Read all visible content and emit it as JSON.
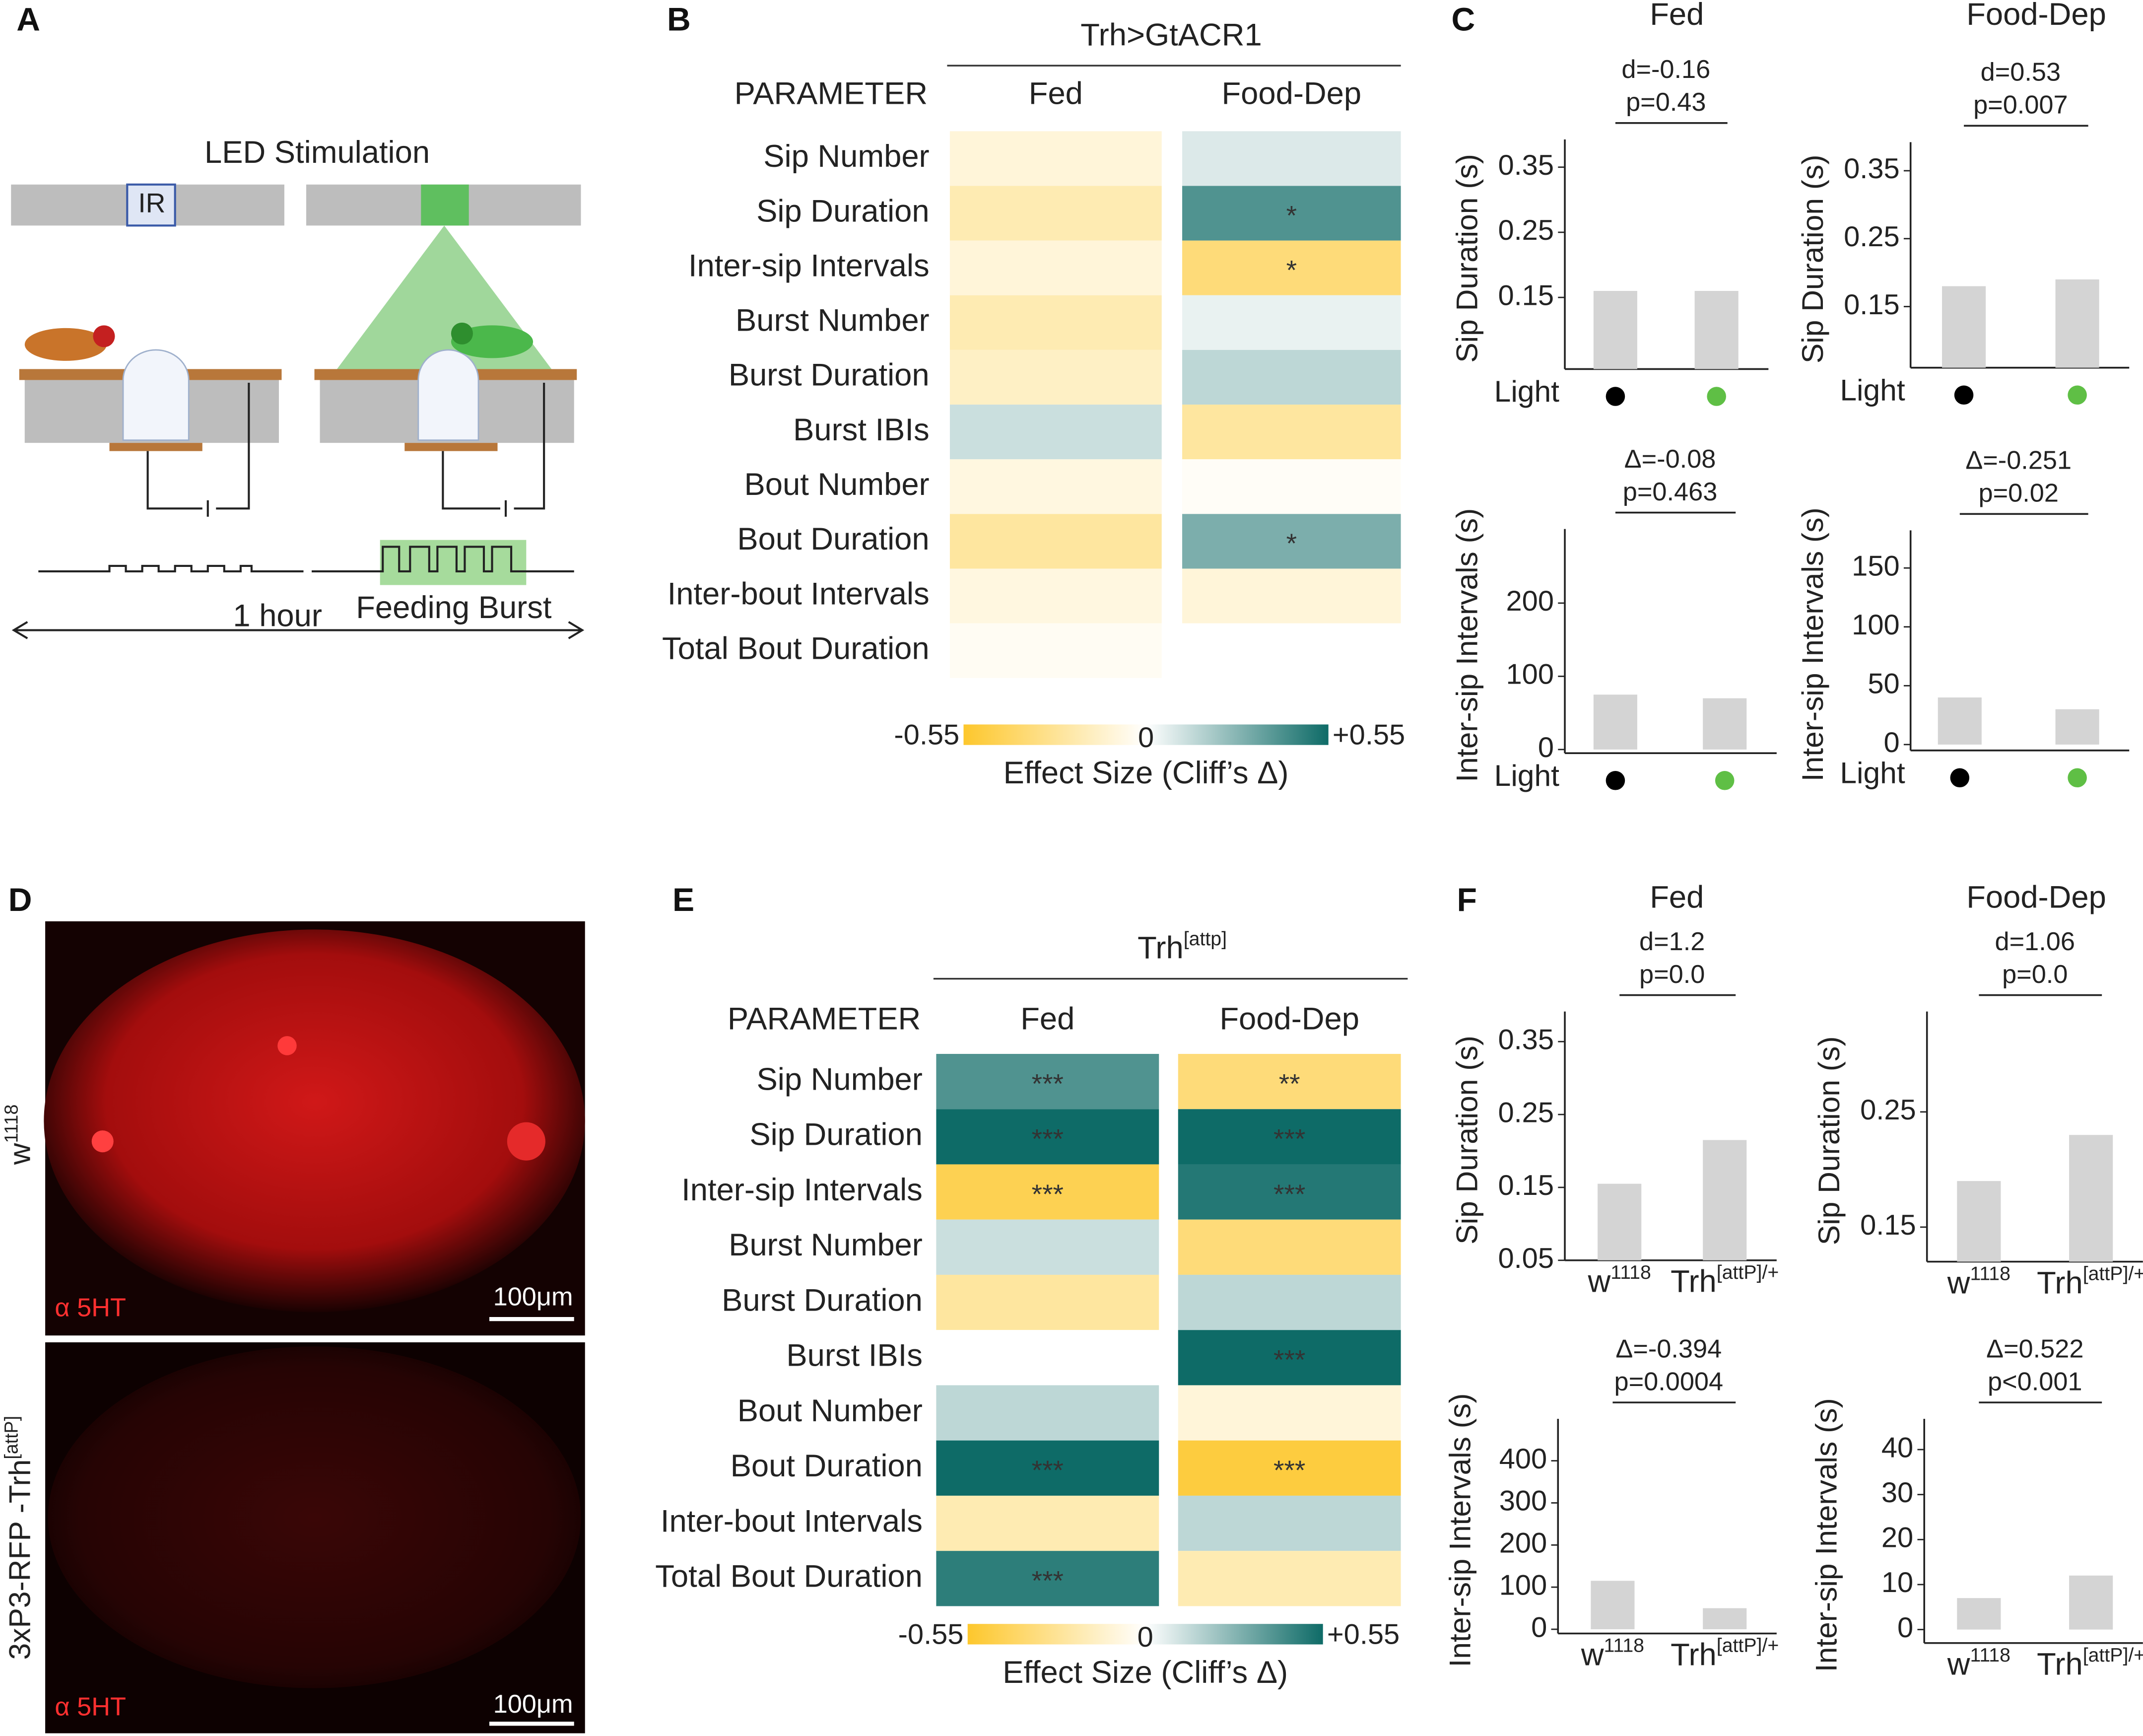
{
  "panels": {
    "A": {
      "label": "A",
      "title": "LED Stimulation",
      "ir": "IR",
      "duration": "1 hour",
      "burst": "Feeding Burst"
    },
    "B": {
      "label": "B",
      "genotype": {
        "base": "Trh>GtACR1"
      },
      "param_header": "PARAMETER",
      "columns": [
        "Fed",
        "Food-Dep"
      ],
      "rows": [
        "Sip Number",
        "Sip Duration",
        "Inter-sip Intervals",
        "Burst Number",
        "Burst Duration",
        "Burst IBIs",
        "Bout Number",
        "Bout Duration",
        "Inter-bout Intervals",
        "Total Bout Duration"
      ],
      "cells": [
        [
          -0.1,
          0.08
        ],
        [
          -0.2,
          0.4
        ],
        [
          -0.1,
          -0.35
        ],
        [
          -0.2,
          0.05
        ],
        [
          -0.15,
          0.15
        ],
        [
          0.12,
          -0.25
        ],
        [
          -0.08,
          -0.02
        ],
        [
          -0.25,
          0.3
        ],
        [
          -0.08,
          -0.1
        ],
        [
          -0.03,
          0
        ]
      ],
      "stars": [
        [
          null,
          null
        ],
        [
          null,
          "*"
        ],
        [
          null,
          "*"
        ],
        [
          null,
          null
        ],
        [
          null,
          null
        ],
        [
          null,
          null
        ],
        [
          null,
          null
        ],
        [
          null,
          "*"
        ],
        [
          null,
          null
        ],
        [
          null,
          null
        ]
      ],
      "scale": {
        "lim": [
          -0.55,
          0.55
        ],
        "ticks": [
          -0.55,
          0,
          {
            "value": 0.55,
            "label": "+0.55"
          }
        ],
        "label": "Effect Size (Cliff’s Δ)"
      }
    },
    "C": {
      "label": "C",
      "columns": [
        "Fed",
        "Food-Dep"
      ],
      "charts": [
        {
          "type": "bar",
          "ylabel": "Sip Duration (s)",
          "ylim": [
            0.04,
            0.38
          ],
          "yticks": [
            0.15,
            0.25,
            0.35
          ],
          "values": [
            0.16,
            0.16
          ],
          "stat": [
            "d=-0.16",
            "p=0.43"
          ],
          "xlabel": "Light",
          "group_colors": [
            "#000000",
            "#5fbf45"
          ],
          "bar_color": "#d4d4d4"
        },
        {
          "type": "bar",
          "ylabel": "Sip Duration (s)",
          "ylim": [
            0.06,
            0.38
          ],
          "yticks": [
            0.15,
            0.25,
            0.35
          ],
          "values": [
            0.18,
            0.19
          ],
          "stat": [
            "d=0.53",
            "p=0.007"
          ],
          "xlabel": "Light",
          "group_colors": [
            "#000000",
            "#5fbf45"
          ],
          "bar_color": "#d4d4d4"
        },
        {
          "type": "bar",
          "ylabel": "Inter-sip Intervals (s)",
          "ylim": [
            -5,
            290
          ],
          "yticks": [
            0,
            100,
            200
          ],
          "values": [
            75,
            70
          ],
          "stat": [
            "Δ=-0.08",
            "p=0.463"
          ],
          "xlabel": "Light",
          "group_colors": [
            "#000000",
            "#5fbf45"
          ],
          "bar_color": "#d4d4d4"
        },
        {
          "type": "bar",
          "ylabel": "Inter-sip Intervals (s)",
          "ylim": [
            -5,
            175
          ],
          "yticks": [
            0,
            50,
            100,
            150
          ],
          "values": [
            40,
            30
          ],
          "stat": [
            "Δ=-0.251",
            "p=0.02"
          ],
          "xlabel": "Light",
          "group_colors": [
            "#000000",
            "#5fbf45"
          ],
          "bar_color": "#d4d4d4"
        }
      ]
    },
    "D": {
      "label": "D",
      "top_label": {
        "base": "w",
        "sup": "1118"
      },
      "bottom_label": {
        "base": "3xP3-RFP -Trh",
        "sup": "[attP]"
      },
      "stain": "α 5HT",
      "scale_bar": "100μm"
    },
    "E": {
      "label": "E",
      "genotype": {
        "base": "Trh",
        "sup": "[attp]"
      },
      "param_header": "PARAMETER",
      "columns": [
        "Fed",
        "Food-Dep"
      ],
      "rows": [
        "Sip Number",
        "Sip Duration",
        "Inter-sip Intervals",
        "Burst Number",
        "Burst Duration",
        "Burst IBIs",
        "Bout Number",
        "Bout Duration",
        "Inter-bout Intervals",
        "Total Bout Duration"
      ],
      "cells": [
        [
          0.4,
          -0.35
        ],
        [
          0.55,
          0.55
        ],
        [
          -0.45,
          0.5
        ],
        [
          0.12,
          -0.35
        ],
        [
          -0.25,
          0.15
        ],
        [
          0,
          0.55
        ],
        [
          0.15,
          -0.1
        ],
        [
          0.55,
          -0.5
        ],
        [
          -0.2,
          0.15
        ],
        [
          0.48,
          -0.2
        ]
      ],
      "stars": [
        [
          "***",
          "**"
        ],
        [
          "***",
          "***"
        ],
        [
          "***",
          "***"
        ],
        [
          null,
          null
        ],
        [
          null,
          null
        ],
        [
          null,
          "***"
        ],
        [
          null,
          null
        ],
        [
          "***",
          "***"
        ],
        [
          null,
          null
        ],
        [
          "***",
          null
        ]
      ],
      "scale": {
        "lim": [
          -0.55,
          0.55
        ],
        "ticks": [
          -0.55,
          0,
          {
            "value": 0.55,
            "label": "+0.55"
          }
        ],
        "label": "Effect Size (Cliff’s Δ)"
      }
    },
    "F": {
      "label": "F",
      "columns": [
        "Fed",
        "Food-Dep"
      ],
      "charts": [
        {
          "type": "bar",
          "ylabel": "Sip Duration (s)",
          "ylim": [
            0.05,
            0.38
          ],
          "yticks": [
            0.05,
            0.15,
            0.25,
            0.35
          ],
          "values": [
            0.155,
            0.215
          ],
          "stat": [
            "d=1.2",
            "p=0.0"
          ],
          "categories": [
            {
              "base": "w",
              "sup": "1118"
            },
            {
              "base": "Trh",
              "sup": "[attP]/+"
            }
          ],
          "bar_color": "#d4d4d4"
        },
        {
          "type": "bar",
          "ylabel": "Sip Duration (s)",
          "ylim": [
            0.12,
            0.33
          ],
          "yticks": [
            0.15,
            0.25
          ],
          "values": [
            0.19,
            0.23
          ],
          "stat": [
            "d=1.06",
            "p=0.0"
          ],
          "categories": [
            {
              "base": "w",
              "sup": "1118"
            },
            {
              "base": "Trh",
              "sup": "[attP]/+"
            }
          ],
          "bar_color": "#d4d4d4"
        },
        {
          "type": "bar",
          "ylabel": "Inter-sip Intervals (s)",
          "ylim": [
            -10,
            480
          ],
          "yticks": [
            0,
            100,
            200,
            300,
            400
          ],
          "values": [
            115,
            50
          ],
          "stat": [
            "Δ=-0.394",
            "p=0.0004"
          ],
          "categories": [
            {
              "base": "w",
              "sup": "1118"
            },
            {
              "base": "Trh",
              "sup": "[attP]/+"
            }
          ],
          "bar_color": "#d4d4d4"
        },
        {
          "type": "bar",
          "ylabel": "Inter-sip Intervals (s)",
          "ylim": [
            -3,
            45
          ],
          "yticks": [
            0,
            10,
            20,
            30,
            40
          ],
          "values": [
            7,
            12
          ],
          "stat": [
            "Δ=0.522",
            "p<0.001"
          ],
          "categories": [
            {
              "base": "w",
              "sup": "1118"
            },
            {
              "base": "Trh",
              "sup": "[attP]/+"
            }
          ],
          "bar_color": "#d4d4d4"
        }
      ]
    }
  },
  "colors": {
    "negative": "#fdc72c",
    "zero": "#ffffff",
    "positive": "#0e6b67"
  }
}
